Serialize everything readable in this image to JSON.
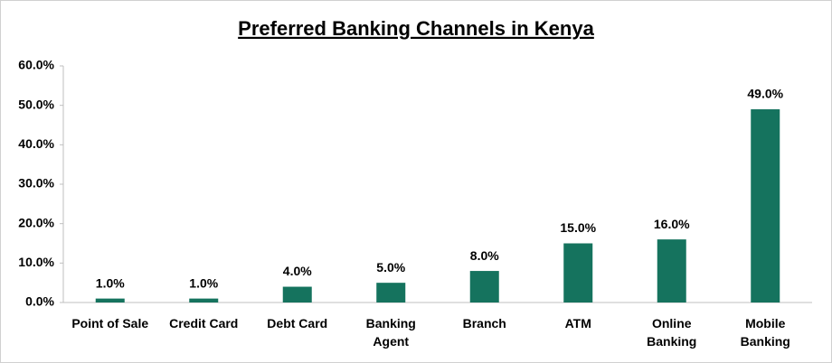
{
  "chart_data": {
    "type": "bar",
    "title": "Preferred Banking Channels in Kenya",
    "categories": [
      "Point of Sale",
      "Credit Card",
      "Debt Card",
      "Banking\nAgent",
      "Branch",
      "ATM",
      "Online\nBanking",
      "Mobile\nBanking"
    ],
    "values": [
      1,
      1,
      4,
      5,
      8,
      15,
      16,
      49
    ],
    "value_labels": [
      "1.0%",
      "1.0%",
      "4.0%",
      "5.0%",
      "8.0%",
      "15.0%",
      "16.0%",
      "49.0%"
    ],
    "color": "#15735e",
    "ylim": [
      0,
      60
    ],
    "yticks": [
      {
        "value": 0,
        "label": "0.0%"
      },
      {
        "value": 10,
        "label": "10.0%"
      },
      {
        "value": 20,
        "label": "20.0%"
      },
      {
        "value": 30,
        "label": "30.0%"
      },
      {
        "value": 40,
        "label": "40.0%"
      },
      {
        "value": 50,
        "label": "50.0%"
      },
      {
        "value": 60,
        "label": "60.0%"
      }
    ],
    "grid": false
  }
}
